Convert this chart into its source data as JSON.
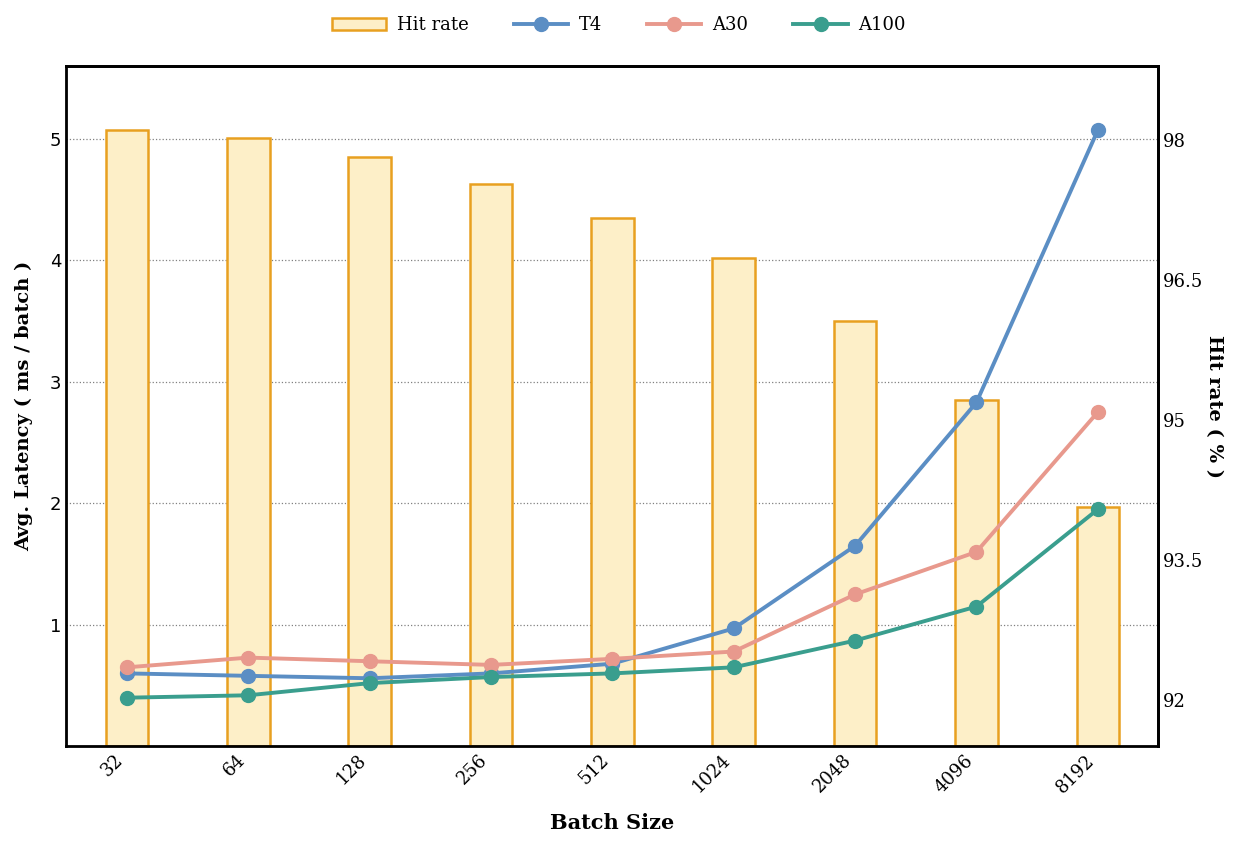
{
  "batch_sizes": [
    32,
    64,
    128,
    256,
    512,
    1024,
    2048,
    4096,
    8192
  ],
  "hit_rate": [
    5.07,
    5.01,
    4.85,
    4.63,
    4.35,
    4.02,
    3.5,
    2.85,
    1.97
  ],
  "T4": [
    0.6,
    0.58,
    0.56,
    0.6,
    0.68,
    0.97,
    1.65,
    2.83,
    5.07
  ],
  "A30": [
    0.65,
    0.73,
    0.7,
    0.67,
    0.72,
    0.78,
    1.25,
    1.6,
    2.75
  ],
  "A100": [
    0.4,
    0.42,
    0.52,
    0.57,
    0.6,
    0.65,
    0.87,
    1.15,
    1.95
  ],
  "hit_rate_color_face": "#fdefc8",
  "hit_rate_color_edge": "#e8a020",
  "T4_color": "#5b8ec4",
  "A30_color": "#e8998d",
  "A100_color": "#3a9e8e",
  "xlabel": "Batch Size",
  "ylabel_left": "Avg. Latency ( ms / batch )",
  "ylabel_right": "Hit rate ( % )",
  "ylim_left": [
    0,
    5.6
  ],
  "ylim_right": [
    91.5,
    98.8
  ],
  "yticks_left": [
    1,
    2,
    3,
    4,
    5
  ],
  "yticks_right": [
    92,
    93.5,
    95,
    96.5,
    98
  ],
  "bar_width": 0.35,
  "legend_labels": [
    "Hit rate",
    "T4",
    "A30",
    "A100"
  ],
  "background_color": "#ffffff",
  "spine_linewidth": 2.0,
  "line_linewidth": 2.8,
  "markersize": 10
}
